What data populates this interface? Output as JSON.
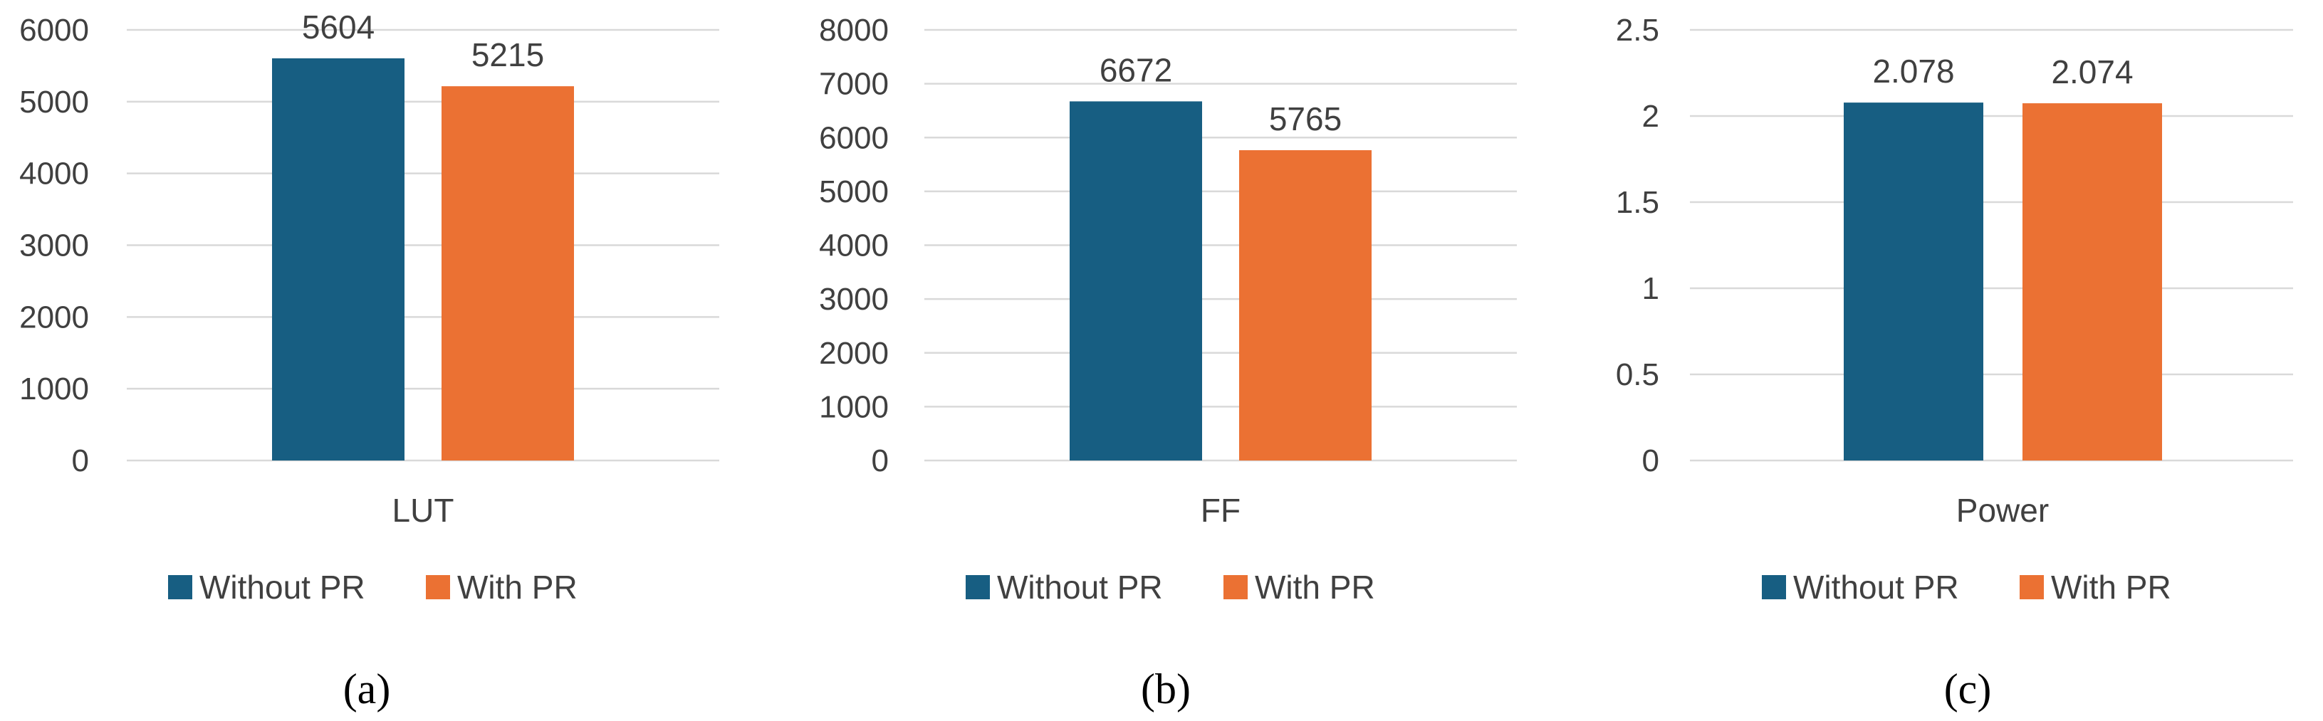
{
  "colors": {
    "without_pr": "#175e82",
    "with_pr": "#eb7133"
  },
  "chart_data": [
    {
      "type": "bar",
      "categories": [
        "LUT"
      ],
      "series": [
        {
          "name": "Without PR",
          "values": [
            5604
          ]
        },
        {
          "name": "With PR",
          "values": [
            5215
          ]
        }
      ],
      "data_labels": [
        "5604",
        "5215"
      ],
      "ylim": [
        0,
        6000
      ],
      "yticks": [
        "0",
        "1000",
        "2000",
        "3000",
        "4000",
        "5000",
        "6000"
      ],
      "ytick_values": [
        0,
        1000,
        2000,
        3000,
        4000,
        5000,
        6000
      ],
      "grid": true,
      "legend": "bottom",
      "caption": "(a)"
    },
    {
      "type": "bar",
      "categories": [
        "FF"
      ],
      "series": [
        {
          "name": "Without PR",
          "values": [
            6672
          ]
        },
        {
          "name": "With PR",
          "values": [
            5765
          ]
        }
      ],
      "data_labels": [
        "6672",
        "5765"
      ],
      "ylim": [
        0,
        8000
      ],
      "yticks": [
        "0",
        "1000",
        "2000",
        "3000",
        "4000",
        "5000",
        "6000",
        "7000",
        "8000"
      ],
      "ytick_values": [
        0,
        1000,
        2000,
        3000,
        4000,
        5000,
        6000,
        7000,
        8000
      ],
      "grid": true,
      "legend": "bottom",
      "caption": "(b)"
    },
    {
      "type": "bar",
      "categories": [
        "Power"
      ],
      "series": [
        {
          "name": "Without PR",
          "values": [
            2.078
          ]
        },
        {
          "name": "With PR",
          "values": [
            2.074
          ]
        }
      ],
      "data_labels": [
        "2.078",
        "2.074"
      ],
      "ylim": [
        0,
        2.5
      ],
      "yticks": [
        "0",
        "0.5",
        "1",
        "1.5",
        "2",
        "2.5"
      ],
      "ytick_values": [
        0,
        0.5,
        1,
        1.5,
        2,
        2.5
      ],
      "grid": true,
      "legend": "bottom",
      "caption": "(c)"
    }
  ]
}
